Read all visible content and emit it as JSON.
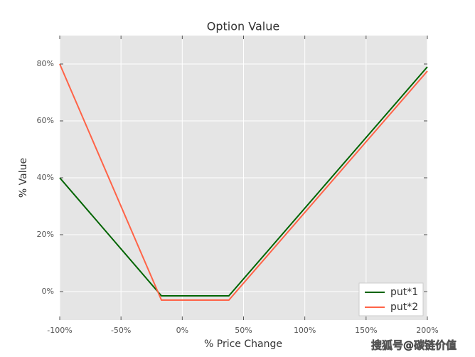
{
  "chart_data": {
    "type": "line",
    "title": "Option Value",
    "x_label": "% Price Change",
    "y_label": "% Value",
    "x": [
      -100,
      -17,
      38,
      200
    ],
    "series": [
      {
        "name": "put*1",
        "color": "#006400",
        "values": [
          40,
          -1.5,
          -1.5,
          79
        ]
      },
      {
        "name": "put*2",
        "color": "#ff6347",
        "values": [
          80,
          -3,
          -3,
          77.5
        ]
      }
    ],
    "xlim": [
      -100,
      200
    ],
    "xticks": [
      {
        "value": -100,
        "label": "-100%"
      },
      {
        "value": -50,
        "label": "-50%"
      },
      {
        "value": 0,
        "label": "0%"
      },
      {
        "value": 50,
        "label": "50%"
      },
      {
        "value": 100,
        "label": "100%"
      },
      {
        "value": 150,
        "label": "150%"
      },
      {
        "value": 200,
        "label": "200%"
      }
    ],
    "ylim": [
      -10,
      90
    ],
    "yticks": [
      {
        "value": 0,
        "label": "0%"
      },
      {
        "value": 20,
        "label": "20%"
      },
      {
        "value": 40,
        "label": "40%"
      },
      {
        "value": 60,
        "label": "60%"
      },
      {
        "value": 80,
        "label": "80%"
      }
    ],
    "grid": true,
    "legend": "lower right"
  },
  "watermark": "搜狐号@碳链价值"
}
